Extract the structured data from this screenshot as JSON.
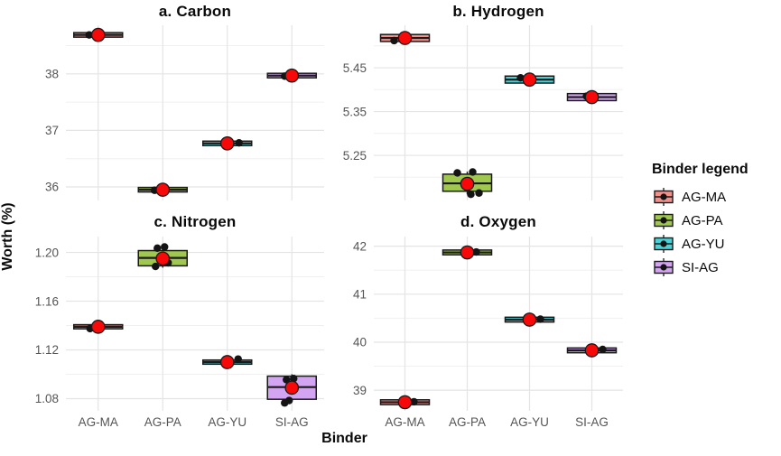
{
  "figure": {
    "y_axis_title": "Worth (%)",
    "x_axis_title": "Binder"
  },
  "legend": {
    "title": "Binder legend",
    "position": "right",
    "items": [
      {
        "label": "AG-MA",
        "fill": "#F2908B"
      },
      {
        "label": "AG-PA",
        "fill": "#A0C74E"
      },
      {
        "label": "AG-YU",
        "fill": "#49D1D6"
      },
      {
        "label": "SI-AG",
        "fill": "#D3A4F1"
      }
    ]
  },
  "style": {
    "mean_color": "#F80909",
    "point_color": "#141414",
    "stroke": "#1A1A1A",
    "grid_major": "#E4E4E4",
    "grid_minor": "#F0F0F0",
    "tick_label_color": "#555555",
    "background": "#FFFFFF"
  },
  "chart_data": {
    "type": "boxplot",
    "xlabel": "Binder",
    "ylabel": "Worth (%)",
    "legend_title": "Binder legend",
    "grid": true,
    "categories": [
      "AG-MA",
      "AG-PA",
      "AG-YU",
      "SI-AG"
    ],
    "panels": [
      {
        "title": "a. Carbon",
        "ylim": [
          35.76,
          38.86
        ],
        "yticks": [
          36,
          37,
          38
        ],
        "ytick_labels": [
          "36",
          "37",
          "38"
        ],
        "groups": [
          {
            "binder": "AG-MA",
            "mean": 38.69,
            "median": 38.69,
            "q1": 38.65,
            "q3": 38.73,
            "whisker_lo": 38.62,
            "whisker_hi": 38.76,
            "points": [
              {
                "v": 38.69,
                "dx": -10
              }
            ]
          },
          {
            "binder": "AG-PA",
            "mean": 35.95,
            "median": 35.95,
            "q1": 35.91,
            "q3": 35.99,
            "whisker_lo": 35.88,
            "whisker_hi": 36.02,
            "points": [
              {
                "v": 35.94,
                "dx": -9
              }
            ]
          },
          {
            "binder": "AG-YU",
            "mean": 36.77,
            "median": 36.77,
            "q1": 36.73,
            "q3": 36.81,
            "whisker_lo": 36.7,
            "whisker_hi": 36.84,
            "points": [
              {
                "v": 36.78,
                "dx": 13
              }
            ]
          },
          {
            "binder": "SI-AG",
            "mean": 37.97,
            "median": 37.97,
            "q1": 37.93,
            "q3": 38.01,
            "whisker_lo": 37.9,
            "whisker_hi": 38.04,
            "points": [
              {
                "v": 37.96,
                "dx": -8
              }
            ]
          }
        ]
      },
      {
        "title": "b. Hydrogen",
        "ylim": [
          5.147,
          5.547
        ],
        "yticks": [
          5.25,
          5.35,
          5.45
        ],
        "ytick_labels": [
          "5.25",
          "5.35",
          "5.45"
        ],
        "groups": [
          {
            "binder": "AG-MA",
            "mean": 5.518,
            "median": 5.518,
            "q1": 5.51,
            "q3": 5.526,
            "whisker_lo": 5.505,
            "whisker_hi": 5.531,
            "points": [
              {
                "v": 5.512,
                "dx": -12
              }
            ]
          },
          {
            "binder": "AG-PA",
            "mean": 5.185,
            "median": 5.186,
            "q1": 5.168,
            "q3": 5.207,
            "whisker_lo": 5.161,
            "whisker_hi": 5.213,
            "points": [
              {
                "v": 5.21,
                "dx": -11
              },
              {
                "v": 5.212,
                "dx": 6
              },
              {
                "v": 5.161,
                "dx": 4
              },
              {
                "v": 5.164,
                "dx": 13
              }
            ]
          },
          {
            "binder": "AG-YU",
            "mean": 5.423,
            "median": 5.423,
            "q1": 5.415,
            "q3": 5.431,
            "whisker_lo": 5.41,
            "whisker_hi": 5.436,
            "points": [
              {
                "v": 5.427,
                "dx": -10
              }
            ]
          },
          {
            "binder": "SI-AG",
            "mean": 5.383,
            "median": 5.383,
            "q1": 5.375,
            "q3": 5.391,
            "whisker_lo": 5.37,
            "whisker_hi": 5.396,
            "points": [
              {
                "v": 5.385,
                "dx": -6
              }
            ]
          }
        ]
      },
      {
        "title": "c. Nitrogen",
        "ylim": [
          1.07,
          1.213
        ],
        "yticks": [
          1.08,
          1.12,
          1.16,
          1.2
        ],
        "ytick_labels": [
          "1.08",
          "1.12",
          "1.16",
          "1.20"
        ],
        "groups": [
          {
            "binder": "AG-MA",
            "mean": 1.139,
            "median": 1.139,
            "q1": 1.1375,
            "q3": 1.1405,
            "whisker_lo": 1.136,
            "whisker_hi": 1.142,
            "points": [
              {
                "v": 1.1375,
                "dx": -9
              },
              {
                "v": 1.138,
                "dx": -3
              }
            ]
          },
          {
            "binder": "AG-PA",
            "mean": 1.195,
            "median": 1.1955,
            "q1": 1.189,
            "q3": 1.2015,
            "whisker_lo": 1.1875,
            "whisker_hi": 1.203,
            "points": [
              {
                "v": 1.2035,
                "dx": -6
              },
              {
                "v": 1.2045,
                "dx": 2
              },
              {
                "v": 1.1885,
                "dx": -8
              },
              {
                "v": 1.1915,
                "dx": 6
              }
            ]
          },
          {
            "binder": "AG-YU",
            "mean": 1.11,
            "median": 1.11,
            "q1": 1.1085,
            "q3": 1.1115,
            "whisker_lo": 1.107,
            "whisker_hi": 1.113,
            "points": [
              {
                "v": 1.1125,
                "dx": 12
              }
            ]
          },
          {
            "binder": "SI-AG",
            "mean": 1.089,
            "median": 1.0895,
            "q1": 1.0795,
            "q3": 1.0985,
            "whisker_lo": 1.078,
            "whisker_hi": 1.1,
            "points": [
              {
                "v": 1.0955,
                "dx": -6
              },
              {
                "v": 1.0965,
                "dx": 2
              },
              {
                "v": 1.0765,
                "dx": -8
              },
              {
                "v": 1.0785,
                "dx": -3
              }
            ]
          }
        ]
      },
      {
        "title": "d. Oxygen",
        "ylim": [
          38.57,
          42.2
        ],
        "yticks": [
          39,
          40,
          41,
          42
        ],
        "ytick_labels": [
          "39",
          "40",
          "41",
          "42"
        ],
        "groups": [
          {
            "binder": "AG-MA",
            "mean": 38.75,
            "median": 38.75,
            "q1": 38.7,
            "q3": 38.8,
            "whisker_lo": 38.66,
            "whisker_hi": 38.84,
            "points": [
              {
                "v": 38.76,
                "dx": 10
              }
            ]
          },
          {
            "binder": "AG-PA",
            "mean": 41.87,
            "median": 41.87,
            "q1": 41.82,
            "q3": 41.92,
            "whisker_lo": 41.78,
            "whisker_hi": 41.96,
            "points": [
              {
                "v": 41.88,
                "dx": 10
              }
            ]
          },
          {
            "binder": "AG-YU",
            "mean": 40.47,
            "median": 40.47,
            "q1": 40.42,
            "q3": 40.52,
            "whisker_lo": 40.38,
            "whisker_hi": 40.56,
            "points": [
              {
                "v": 40.48,
                "dx": 12
              }
            ]
          },
          {
            "binder": "SI-AG",
            "mean": 39.83,
            "median": 39.83,
            "q1": 39.78,
            "q3": 39.88,
            "whisker_lo": 39.74,
            "whisker_hi": 39.92,
            "points": [
              {
                "v": 39.85,
                "dx": 12
              }
            ]
          }
        ]
      }
    ]
  }
}
